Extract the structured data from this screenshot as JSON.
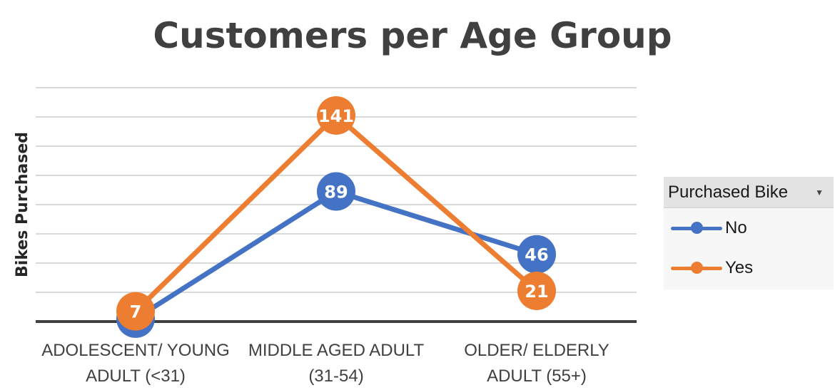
{
  "chart_data": {
    "type": "line",
    "title": "Customers per Age Group",
    "ylabel": "Bikes Purchased",
    "xlabel": "",
    "categories": [
      [
        "ADOLESCENT/ YOUNG",
        "ADULT (<31)"
      ],
      [
        "MIDDLE AGED ADULT",
        "(31-54)"
      ],
      [
        "OLDER/ ELDERLY",
        "ADULT (55+)"
      ]
    ],
    "series": [
      {
        "name": "No",
        "values": [
          2,
          89,
          46
        ],
        "color": "#4472C4"
      },
      {
        "name": "Yes",
        "values": [
          7,
          141,
          21
        ],
        "color": "#ED7D31"
      }
    ],
    "ylim": [
      0,
      160
    ],
    "grid": true,
    "legend_position": "right"
  },
  "legend": {
    "title": "Purchased Bike",
    "dropdown_icon": "dropdown-arrow-icon"
  }
}
